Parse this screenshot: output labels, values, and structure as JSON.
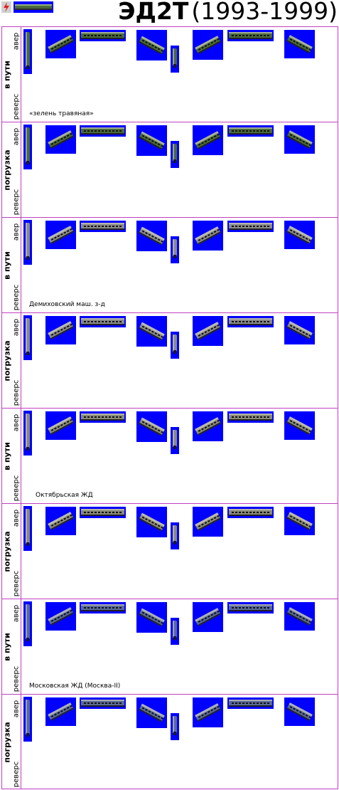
{
  "header": {
    "logo_icon": "lightning-icon",
    "logo_image": "train-car-icon",
    "model": "ЭД2Т",
    "years": "(1993-1999)"
  },
  "labels": {
    "avers": "авер",
    "revers": "реверс"
  },
  "rows": [
    {
      "state": "в пути",
      "caption": "«зелень травяная»",
      "body_color": "#4a6a3a"
    },
    {
      "state": "погрузка",
      "caption": "",
      "body_color": "#4a6a3a"
    },
    {
      "state": "в пути",
      "caption": "Демиховский маш. з-д",
      "body_color": "#8a8a8a"
    },
    {
      "state": "погрузка",
      "caption": "",
      "body_color": "#8a8a8a"
    },
    {
      "state": "в пути",
      "caption": "Октябрьская ЖД",
      "body_color": "#8a8a7a"
    },
    {
      "state": "погрузка",
      "caption": "",
      "body_color": "#8a8a7a"
    },
    {
      "state": "в пути",
      "caption": "Московская ЖД (Москва-II)",
      "body_color": "#5a6a9a"
    },
    {
      "state": "погрузка",
      "caption": "",
      "body_color": "#5a6a9a"
    }
  ],
  "colors": {
    "grid_line": "#c040c0",
    "sprite_bg": "#0000ff"
  }
}
